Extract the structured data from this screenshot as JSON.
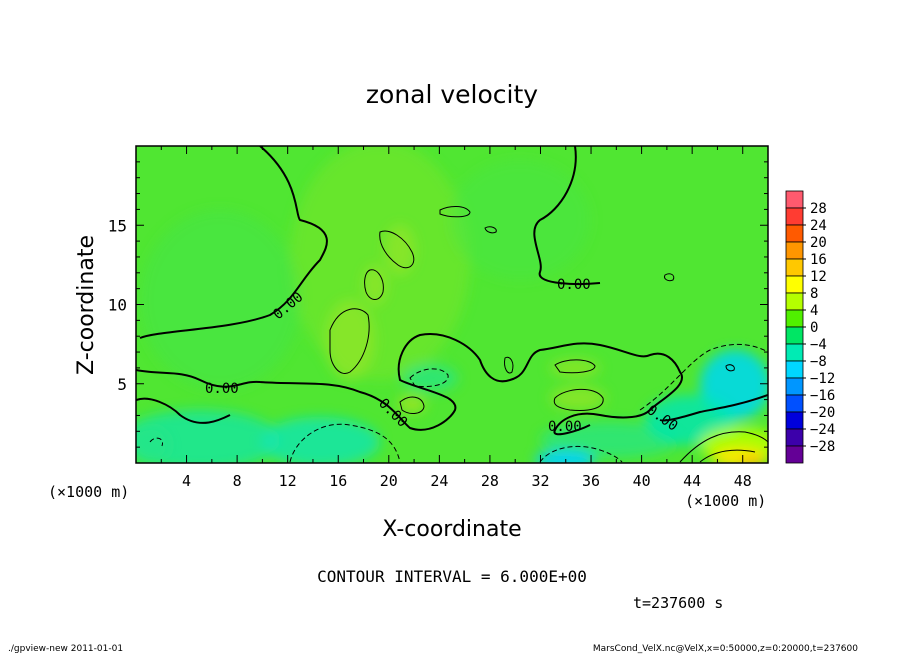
{
  "chart_data": {
    "type": "heatmap",
    "title": "zonal velocity",
    "xlabel": "X-coordinate",
    "ylabel": "Z-coordinate",
    "x_unit_label": "(×1000 m)",
    "y_unit_label": "(×1000 m)",
    "xlim": [
      0,
      50
    ],
    "ylim": [
      0,
      20
    ],
    "x_ticks": [
      "4",
      "8",
      "12",
      "16",
      "20",
      "24",
      "28",
      "32",
      "36",
      "40",
      "44",
      "48"
    ],
    "x_tick_values": [
      4,
      8,
      12,
      16,
      20,
      24,
      28,
      32,
      36,
      40,
      44,
      48
    ],
    "y_ticks": [
      "5",
      "10",
      "15"
    ],
    "y_tick_values": [
      5,
      10,
      15
    ],
    "contour_interval_label": "CONTOUR INTERVAL = 6.000E+00",
    "contour_labels": [
      "0.00",
      "0.00",
      "0.00",
      "0.00",
      "0.00",
      "0.00"
    ],
    "colorbar": {
      "labels": [
        "28",
        "24",
        "20",
        "16",
        "12",
        "8",
        "4",
        "0",
        "−4",
        "−8",
        "−12",
        "−16",
        "−20",
        "−24",
        "−28"
      ],
      "values": [
        28,
        24,
        20,
        16,
        12,
        8,
        4,
        0,
        -4,
        -8,
        -12,
        -16,
        -20,
        -24,
        -28
      ],
      "colors": [
        "#ff5a6e",
        "#ff3c32",
        "#ff5a00",
        "#ff9600",
        "#ffc800",
        "#ffff00",
        "#b4ff00",
        "#50f000",
        "#00e664",
        "#00ebb4",
        "#00d7ff",
        "#0096ff",
        "#0050ff",
        "#0000dc",
        "#3c00aa",
        "#640096"
      ]
    },
    "grid": false
  },
  "time_label": "t=237600 s",
  "footer_left": "./gpview-new 2011-01-01",
  "footer_right": "MarsCond_VelX.nc@VelX,x=0:50000,z=0:20000,t=237600"
}
